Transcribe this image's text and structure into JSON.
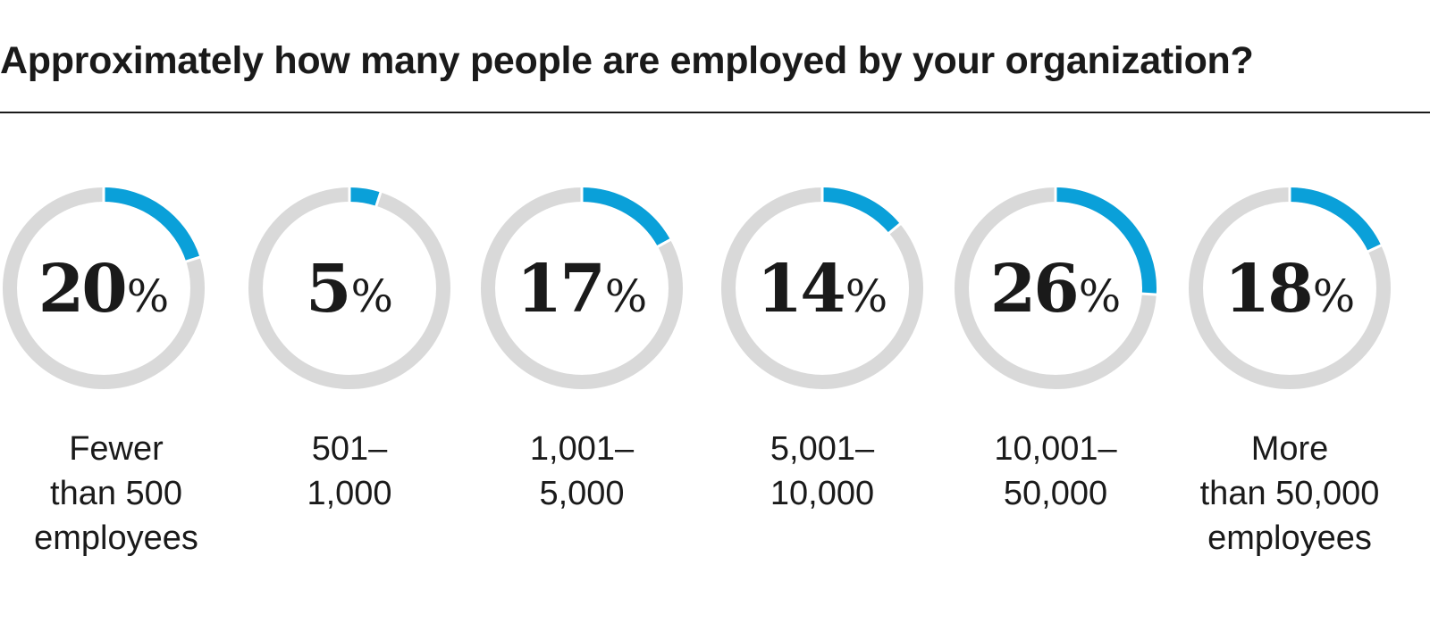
{
  "title": "Approximately how many people are employed by your organization?",
  "colors": {
    "accent": "#0aa0d9",
    "track": "#d9d9d9",
    "text": "#1a1a1a"
  },
  "chart_data": {
    "type": "pie",
    "subtype": "donut",
    "title": "Approximately how many people are employed by your organization?",
    "unit": "%",
    "items": [
      {
        "label_lines": [
          "Fewer",
          "than 500",
          "employees"
        ],
        "value": 20
      },
      {
        "label_lines": [
          "501–",
          "1,000"
        ],
        "value": 5
      },
      {
        "label_lines": [
          "1,001–",
          "5,000"
        ],
        "value": 17
      },
      {
        "label_lines": [
          "5,001–",
          "10,000"
        ],
        "value": 14
      },
      {
        "label_lines": [
          "10,001–",
          "50,000"
        ],
        "value": 26
      },
      {
        "label_lines": [
          "More",
          "than 50,000",
          "employees"
        ],
        "value": 18
      }
    ]
  }
}
